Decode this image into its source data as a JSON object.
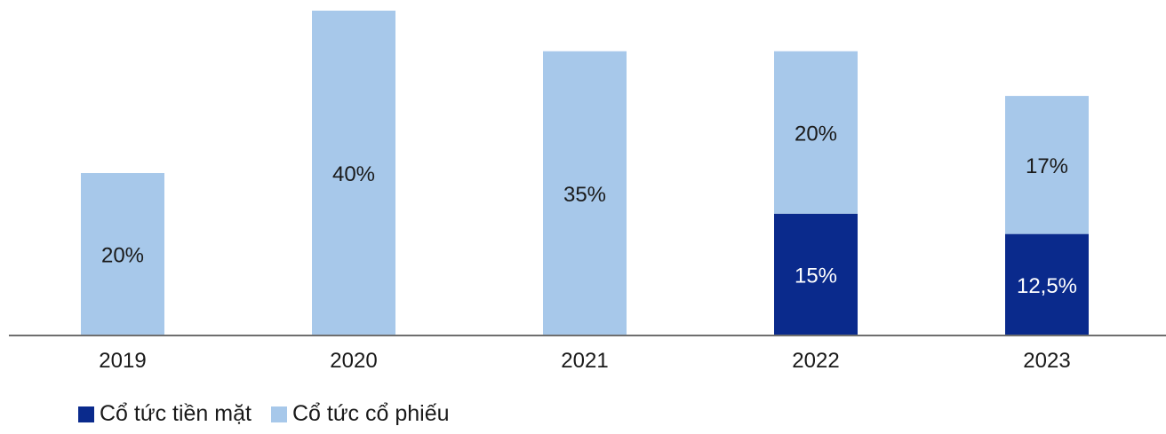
{
  "chart_data": {
    "type": "bar",
    "stacked": true,
    "title": "",
    "xlabel": "",
    "ylabel": "",
    "ylim": [
      0,
      42
    ],
    "grid": false,
    "legend_position": "bottom-left",
    "categories": [
      "2019",
      "2020",
      "2021",
      "2022",
      "2023"
    ],
    "series": [
      {
        "name": "Cổ tức tiền mặt",
        "color": "#0a2a8c",
        "values": [
          0,
          0,
          0,
          15,
          12.5
        ],
        "labels": [
          "",
          "",
          "",
          "15%",
          "12,5%"
        ]
      },
      {
        "name": "Cổ tức cổ phiếu",
        "color": "#a7c8ea",
        "values": [
          20,
          40,
          35,
          20,
          17
        ],
        "labels": [
          "20%",
          "40%",
          "35%",
          "20%",
          "17%"
        ]
      }
    ]
  }
}
